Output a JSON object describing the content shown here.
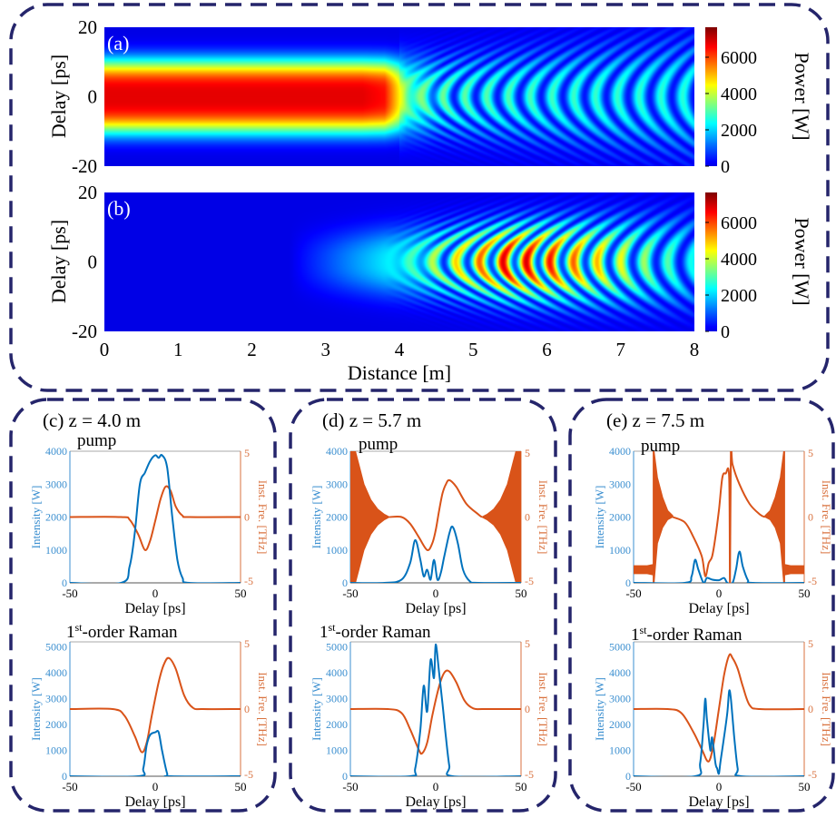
{
  "colors": {
    "frame": "#25256b",
    "intensity": "#0072BD",
    "frequency": "#D95319",
    "left_axis_text": "#3b8fd0",
    "right_axis_text": "#d9723f"
  },
  "chart_data": [
    {
      "id": "a",
      "type": "heatmap",
      "label": "(a)",
      "description_key": "pump",
      "xlabel": "",
      "ylabel": "Delay [ps]",
      "colorbar_label": "Power [W]",
      "xlim": [
        0,
        8
      ],
      "ylim": [
        -20,
        20
      ],
      "clim": [
        0,
        7650
      ],
      "colormap": "jet",
      "xticks": [
        "0",
        "1",
        "2",
        "3",
        "4",
        "5",
        "6",
        "7",
        "8"
      ],
      "xtick_values": [
        0,
        1,
        2,
        3,
        4,
        5,
        6,
        7,
        8
      ],
      "yticks": [
        "20",
        "0",
        "-20"
      ],
      "ytick_values": [
        20,
        0,
        -20
      ],
      "cticks": [
        "6000",
        "4000",
        "2000",
        "0"
      ],
      "ctick_values": [
        6000,
        4000,
        2000,
        0
      ],
      "peak_power": {
        "z": [
          0,
          3.5,
          3.8,
          4.1,
          4.5,
          5,
          6,
          7,
          8
        ],
        "p": [
          6800,
          6800,
          6500,
          3600,
          3000,
          2800,
          2600,
          2500,
          2400
        ]
      }
    },
    {
      "id": "b",
      "type": "heatmap",
      "label": "(b)",
      "description_key": "raman",
      "xlabel": "Distance [m]",
      "ylabel": "Delay [ps]",
      "colorbar_label": "Power [W]",
      "xlim": [
        0,
        8
      ],
      "ylim": [
        -20,
        20
      ],
      "clim": [
        0,
        7650
      ],
      "colormap": "jet",
      "xticks": [
        "0",
        "1",
        "2",
        "3",
        "4",
        "5",
        "6",
        "7",
        "8"
      ],
      "xtick_values": [
        0,
        1,
        2,
        3,
        4,
        5,
        6,
        7,
        8
      ],
      "yticks": [
        "20",
        "0",
        "-20"
      ],
      "ytick_values": [
        20,
        0,
        -20
      ],
      "cticks": [
        "6000",
        "4000",
        "2000",
        "0"
      ],
      "ctick_values": [
        6000,
        4000,
        2000,
        0
      ],
      "peak_power": {
        "z": [
          0,
          2.5,
          3,
          4,
          5,
          5.5,
          6,
          6.5,
          7.5,
          8
        ],
        "p": [
          0,
          0,
          800,
          2500,
          5000,
          6500,
          6000,
          5000,
          3000,
          2200
        ]
      }
    },
    {
      "id": "c-pump",
      "type": "line",
      "panel_label": "(c) z = 4.0 m",
      "title": "pump",
      "xlabel": "Delay [ps]",
      "ylabel_left": "Intensity [W]",
      "ylabel_right": "Inst. Fre. [THz]",
      "xlim": [
        -50,
        50
      ],
      "ylim_left": [
        0,
        4000
      ],
      "ylim_right": [
        -5,
        5
      ],
      "xticks": [
        "-50",
        "0",
        "50"
      ],
      "xtick_values": [
        -50,
        0,
        50
      ],
      "yticks_left": [
        "0",
        "1000",
        "2000",
        "3000",
        "4000"
      ],
      "ytick_left_values": [
        0,
        1000,
        2000,
        3000,
        4000
      ],
      "yticks_right": [
        "-5",
        "0",
        "5"
      ],
      "ytick_right_values": [
        -5,
        0,
        5
      ],
      "series": [
        {
          "name": "Intensity",
          "axis": "left",
          "x": [
            -50,
            -20,
            -15,
            -12,
            -9,
            -6,
            -3,
            0,
            2,
            4,
            7,
            10,
            13,
            16,
            20,
            50
          ],
          "y": [
            0,
            0,
            500,
            1500,
            3000,
            3350,
            3700,
            3880,
            3800,
            3880,
            3500,
            2000,
            700,
            150,
            0,
            0
          ]
        },
        {
          "name": "Inst. frequency",
          "axis": "right",
          "x": [
            -50,
            -20,
            -15,
            -10,
            -6,
            -3,
            0,
            3,
            6,
            9,
            12,
            16,
            20,
            50
          ],
          "y": [
            0,
            0,
            -0.2,
            -1.3,
            -2.5,
            -1.8,
            -0.3,
            1.3,
            2.3,
            2,
            0.8,
            0.1,
            0,
            0
          ]
        }
      ]
    },
    {
      "id": "c-raman",
      "type": "line",
      "title_main": "1",
      "title_sup": "st",
      "title_rest": "-order Raman",
      "xlabel": "Delay [ps]",
      "ylabel_left": "Intensity [W]",
      "ylabel_right": "Inst. Fre. [THz]",
      "xlim": [
        -50,
        50
      ],
      "ylim_left": [
        0,
        5200
      ],
      "ylim_right": [
        -5,
        5
      ],
      "xticks": [
        "-50",
        "0",
        "50"
      ],
      "xtick_values": [
        -50,
        0,
        50
      ],
      "yticks_left": [
        "0",
        "1000",
        "2000",
        "3000",
        "4000",
        "5000"
      ],
      "ytick_left_values": [
        0,
        1000,
        2000,
        3000,
        4000,
        5000
      ],
      "yticks_right": [
        "-5",
        "0",
        "5"
      ],
      "ytick_right_values": [
        -5,
        0,
        5
      ],
      "series": [
        {
          "name": "Intensity",
          "axis": "left",
          "x": [
            -50,
            -10,
            -7,
            -5,
            -3,
            0,
            2,
            4,
            7,
            9,
            50
          ],
          "y": [
            0,
            0,
            300,
            1200,
            1600,
            1700,
            1700,
            1000,
            100,
            0,
            0
          ]
        },
        {
          "name": "Inst. frequency",
          "axis": "right",
          "x": [
            -50,
            -25,
            -18,
            -12,
            -8,
            -5,
            -2,
            2,
            5,
            8,
            12,
            17,
            22,
            28,
            50
          ],
          "y": [
            0,
            0,
            -0.5,
            -2,
            -3.2,
            -2.5,
            -0.5,
            2,
            3.3,
            3.8,
            3,
            1,
            0.1,
            0,
            0
          ]
        }
      ]
    },
    {
      "id": "d-pump",
      "type": "line",
      "panel_label": "(d) z = 5.7 m",
      "title": "pump",
      "xlabel": "Delay [ps]",
      "ylabel_left": "Intensity [W]",
      "ylabel_right": "Inst. Fre. [THz]",
      "xlim": [
        -50,
        50
      ],
      "ylim_left": [
        0,
        4000
      ],
      "ylim_right": [
        -5,
        5
      ],
      "xticks": [
        "-50",
        "0",
        "50"
      ],
      "xtick_values": [
        -50,
        0,
        50
      ],
      "yticks_left": [
        "0",
        "1000",
        "2000",
        "3000",
        "4000"
      ],
      "ytick_left_values": [
        0,
        1000,
        2000,
        3000,
        4000
      ],
      "yticks_right": [
        "-5",
        "0",
        "5"
      ],
      "ytick_right_values": [
        -5,
        0,
        5
      ],
      "series": [
        {
          "name": "Intensity",
          "axis": "left",
          "x": [
            -50,
            -30,
            -20,
            -15,
            -12,
            -9,
            -7,
            -5,
            -3,
            -1,
            1,
            3,
            5,
            8,
            10,
            13,
            16,
            20,
            25,
            50
          ],
          "y": [
            0,
            0,
            100,
            600,
            1300,
            700,
            200,
            400,
            100,
            700,
            100,
            300,
            800,
            1500,
            1700,
            1200,
            400,
            50,
            0,
            0
          ]
        },
        {
          "name": "Inst. frequency",
          "axis": "right",
          "x": [
            -27,
            -20,
            -15,
            -10,
            -5,
            -2,
            0,
            2,
            4,
            6,
            8,
            12,
            18,
            25,
            27
          ],
          "y": [
            0,
            0,
            -0.5,
            -1.5,
            -2.5,
            -2,
            -1,
            0.5,
            1.8,
            2.5,
            2.8,
            2.3,
            1,
            0.2,
            0
          ],
          "bands": [
            {
              "x": [
                -50,
                -47,
                -45,
                -42,
                -38,
                -34,
                -30,
                -27
              ],
              "upper": [
                5,
                5,
                4,
                2.5,
                1.3,
                0.6,
                0.2,
                0
              ],
              "lower": [
                -5,
                -5,
                -4,
                -2.5,
                -1.3,
                -0.6,
                -0.2,
                0
              ]
            },
            {
              "x": [
                27,
                30,
                34,
                38,
                42,
                45,
                47,
                50
              ],
              "upper": [
                0,
                0.2,
                0.6,
                1.3,
                2.5,
                4,
                5,
                5
              ],
              "lower": [
                0,
                -0.2,
                -0.6,
                -1.3,
                -2.5,
                -4,
                -5,
                -5
              ]
            }
          ]
        }
      ]
    },
    {
      "id": "d-raman",
      "type": "line",
      "title_main": "1",
      "title_sup": "st",
      "title_rest": "-order Raman",
      "xlabel": "Delay [ps]",
      "ylabel_left": "Intensity [W]",
      "ylabel_right": "Inst. Fre. [THz]",
      "xlim": [
        -50,
        50
      ],
      "ylim_left": [
        0,
        5200
      ],
      "ylim_right": [
        -5,
        5
      ],
      "xticks": [
        "-50",
        "0",
        "50"
      ],
      "xtick_values": [
        -50,
        0,
        50
      ],
      "yticks_left": [
        "0",
        "1000",
        "2000",
        "3000",
        "4000",
        "5000"
      ],
      "ytick_left_values": [
        0,
        1000,
        2000,
        3000,
        4000,
        5000
      ],
      "yticks_right": [
        "-5",
        "0",
        "5"
      ],
      "ytick_right_values": [
        -5,
        0,
        5
      ],
      "series": [
        {
          "name": "Intensity",
          "axis": "left",
          "x": [
            -50,
            -15,
            -12,
            -9,
            -7,
            -5,
            -3,
            -1,
            0,
            2,
            4,
            6,
            8,
            10,
            50
          ],
          "y": [
            0,
            0,
            300,
            1800,
            3500,
            2500,
            4500,
            3800,
            5100,
            4000,
            2800,
            1500,
            400,
            0,
            0
          ]
        },
        {
          "name": "Inst. frequency",
          "axis": "right",
          "x": [
            -50,
            -28,
            -20,
            -15,
            -10,
            -8,
            -5,
            -2,
            2,
            5,
            8,
            12,
            17,
            22,
            28,
            50
          ],
          "y": [
            0,
            0,
            -0.3,
            -1.5,
            -3,
            -3.3,
            -2.5,
            -0.5,
            1.7,
            2.7,
            2.8,
            2,
            0.6,
            0.05,
            0,
            0
          ]
        }
      ]
    },
    {
      "id": "e-pump",
      "type": "line",
      "panel_label": "(e) z = 7.5 m",
      "title": "pump",
      "xlabel": "Delay [ps]",
      "ylabel_left": "Intensity [W]",
      "ylabel_right": "Inst. Fre. [THz]",
      "xlim": [
        -50,
        50
      ],
      "ylim_left": [
        0,
        4000
      ],
      "ylim_right": [
        -5,
        5
      ],
      "xticks": [
        "-50",
        "0",
        "50"
      ],
      "xtick_values": [
        -50,
        0,
        50
      ],
      "yticks_left": [
        "0",
        "1000",
        "2000",
        "3000",
        "4000"
      ],
      "ytick_left_values": [
        0,
        1000,
        2000,
        3000,
        4000
      ],
      "yticks_right": [
        "-5",
        "0",
        "5"
      ],
      "ytick_right_values": [
        -5,
        0,
        5
      ],
      "series": [
        {
          "name": "Intensity",
          "axis": "left",
          "x": [
            -50,
            -20,
            -16,
            -14,
            -12,
            -9,
            -7,
            -4,
            0,
            3,
            5,
            8,
            10,
            12,
            14,
            17,
            20,
            50
          ],
          "y": [
            0,
            0,
            200,
            700,
            400,
            0,
            150,
            100,
            80,
            150,
            0,
            0,
            400,
            950,
            500,
            80,
            0,
            0
          ]
        },
        {
          "name": "Inst. frequency",
          "axis": "right",
          "x": [
            -27,
            -20,
            -15,
            -10,
            -8,
            -6,
            -4,
            -2,
            0,
            2,
            4,
            6,
            6.5,
            7,
            8,
            12,
            18,
            24,
            27
          ],
          "y": [
            0,
            -0.4,
            -1.5,
            -3,
            -4.5,
            -3.5,
            -3,
            -1.5,
            0.5,
            3,
            3.3,
            3,
            -5,
            5,
            4,
            2.5,
            1,
            0.2,
            0
          ],
          "bands": [
            {
              "x": [
                -50,
                -42,
                -38.5
              ],
              "upper": [
                -3.7,
                -3.7,
                -3.6
              ],
              "lower": [
                -4.3,
                -4.3,
                -4.4
              ]
            },
            {
              "x": [
                -38.5,
                -38,
                -36,
                -33,
                -30,
                -27
              ],
              "upper": [
                5,
                5,
                3,
                1.5,
                0.5,
                0.1
              ],
              "lower": [
                -5,
                -5,
                -2,
                -0.8,
                -0.2,
                0
              ]
            },
            {
              "x": [
                27,
                30,
                33,
                36,
                38,
                38.5
              ],
              "upper": [
                0.1,
                0.5,
                1.5,
                3,
                5,
                5
              ],
              "lower": [
                0,
                -0.2,
                -0.8,
                -2,
                -5,
                -5
              ]
            },
            {
              "x": [
                38.5,
                42,
                50
              ],
              "upper": [
                -3.6,
                -3.7,
                -3.7
              ],
              "lower": [
                -4.4,
                -4.3,
                -4.3
              ]
            }
          ]
        }
      ]
    },
    {
      "id": "e-raman",
      "type": "line",
      "title_main": "1",
      "title_sup": "st",
      "title_rest": "-order Raman",
      "xlabel": "Delay [ps]",
      "ylabel_left": "Intensity [W]",
      "ylabel_right": "Inst. Fre. [THz]",
      "xlim": [
        -50,
        50
      ],
      "ylim_left": [
        0,
        5200
      ],
      "ylim_right": [
        -5,
        5
      ],
      "xticks": [
        "-50",
        "0",
        "50"
      ],
      "xtick_values": [
        -50,
        0,
        50
      ],
      "yticks_left": [
        "0",
        "1000",
        "2000",
        "3000",
        "4000",
        "5000"
      ],
      "ytick_left_values": [
        0,
        1000,
        2000,
        3000,
        4000,
        5000
      ],
      "yticks_right": [
        "-5",
        "0",
        "5"
      ],
      "ytick_right_values": [
        -5,
        0,
        5
      ],
      "series": [
        {
          "name": "Intensity",
          "axis": "left",
          "x": [
            -50,
            -14,
            -11,
            -9,
            -8,
            -7,
            -5,
            -4,
            -2,
            -1,
            0,
            1,
            3,
            5,
            6,
            7,
            9,
            11,
            13,
            50
          ],
          "y": [
            0,
            0,
            500,
            2000,
            3000,
            2200,
            1000,
            1500,
            500,
            300,
            100,
            600,
            1500,
            2500,
            3300,
            3000,
            1500,
            300,
            0,
            0
          ]
        },
        {
          "name": "Inst. frequency",
          "axis": "right",
          "x": [
            -50,
            -30,
            -22,
            -15,
            -10,
            -6,
            -3,
            0,
            3,
            6,
            8,
            11,
            14,
            18,
            24,
            50
          ],
          "y": [
            0,
            0,
            -0.3,
            -1.7,
            -3,
            -3.9,
            -2.5,
            0,
            2.5,
            4,
            3.8,
            3,
            1.7,
            0.3,
            0,
            0
          ]
        }
      ]
    }
  ]
}
